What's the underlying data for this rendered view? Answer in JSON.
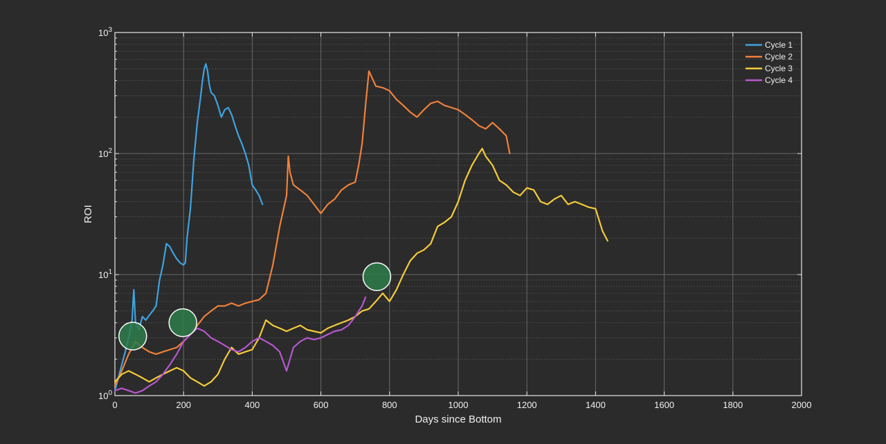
{
  "chart_data": {
    "type": "line",
    "title": "",
    "xlabel": "Days since Bottom",
    "ylabel": "ROI",
    "xlim": [
      0,
      2000
    ],
    "ylim": [
      1,
      1000
    ],
    "yscale": "log",
    "grid": true,
    "legend_position": "top-right",
    "background_color": "#2b2b2b",
    "x_ticks": [
      0,
      200,
      400,
      600,
      800,
      1000,
      1200,
      1400,
      1600,
      1800,
      2000
    ],
    "y_ticks": [
      {
        "base": "10",
        "exp": "0",
        "value": 1
      },
      {
        "base": "10",
        "exp": "1",
        "value": 10
      },
      {
        "base": "10",
        "exp": "2",
        "value": 100
      },
      {
        "base": "10",
        "exp": "3",
        "value": 1000
      }
    ],
    "series": [
      {
        "name": "Cycle 1",
        "color": "#3ea3e0",
        "x": [
          0,
          10,
          20,
          30,
          40,
          50,
          55,
          60,
          70,
          80,
          90,
          100,
          110,
          120,
          130,
          140,
          150,
          160,
          170,
          180,
          190,
          200,
          205,
          210,
          220,
          230,
          240,
          250,
          255,
          260,
          265,
          270,
          275,
          280,
          290,
          300,
          310,
          320,
          330,
          340,
          350,
          360,
          370,
          380,
          390,
          400,
          410,
          420,
          430
        ],
        "y": [
          1.1,
          1.4,
          1.8,
          2.3,
          3.0,
          4.2,
          7.5,
          4.0,
          3.5,
          4.5,
          4.2,
          4.6,
          5.0,
          5.5,
          9.0,
          12.0,
          18.0,
          17.0,
          15.0,
          13.5,
          12.5,
          12.0,
          12.5,
          20.0,
          35.0,
          90.0,
          180.0,
          300.0,
          400.0,
          500.0,
          550.0,
          480.0,
          370.0,
          320.0,
          300.0,
          250.0,
          200.0,
          230.0,
          240.0,
          210.0,
          170.0,
          140.0,
          120.0,
          100.0,
          80.0,
          55.0,
          50.0,
          45.0,
          38.0
        ]
      },
      {
        "name": "Cycle 2",
        "color": "#f0813a",
        "x": [
          0,
          20,
          40,
          60,
          80,
          100,
          120,
          140,
          160,
          180,
          200,
          220,
          240,
          260,
          280,
          300,
          320,
          340,
          360,
          380,
          400,
          420,
          440,
          460,
          480,
          500,
          505,
          510,
          520,
          540,
          560,
          580,
          600,
          620,
          640,
          660,
          680,
          700,
          710,
          720,
          730,
          740,
          760,
          780,
          800,
          820,
          840,
          860,
          880,
          900,
          920,
          940,
          960,
          980,
          1000,
          1020,
          1040,
          1060,
          1080,
          1100,
          1120,
          1140,
          1150
        ],
        "y": [
          1.2,
          1.6,
          2.2,
          2.8,
          2.5,
          2.3,
          2.2,
          2.3,
          2.4,
          2.5,
          2.8,
          3.2,
          3.8,
          4.5,
          5.0,
          5.5,
          5.5,
          5.8,
          5.5,
          5.8,
          6.0,
          6.2,
          7.0,
          12.0,
          25.0,
          45.0,
          95.0,
          70.0,
          55.0,
          50.0,
          45.0,
          38.0,
          32.0,
          38.0,
          42.0,
          50.0,
          55.0,
          58.0,
          80.0,
          120.0,
          250.0,
          480.0,
          360.0,
          350.0,
          330.0,
          280.0,
          250.0,
          220.0,
          200.0,
          230.0,
          260.0,
          270.0,
          250.0,
          240.0,
          230.0,
          210.0,
          190.0,
          170.0,
          160.0,
          180.0,
          160.0,
          140.0,
          100.0
        ]
      },
      {
        "name": "Cycle 3",
        "color": "#f5cc3a",
        "x": [
          0,
          20,
          40,
          60,
          80,
          100,
          120,
          140,
          160,
          180,
          200,
          220,
          240,
          260,
          280,
          300,
          320,
          340,
          360,
          380,
          400,
          420,
          440,
          460,
          480,
          500,
          520,
          540,
          560,
          580,
          600,
          620,
          640,
          660,
          680,
          700,
          720,
          740,
          760,
          780,
          800,
          820,
          840,
          860,
          880,
          900,
          920,
          940,
          960,
          980,
          1000,
          1020,
          1040,
          1060,
          1070,
          1080,
          1100,
          1120,
          1140,
          1160,
          1180,
          1200,
          1220,
          1240,
          1260,
          1280,
          1300,
          1320,
          1340,
          1360,
          1380,
          1400,
          1420,
          1435
        ],
        "y": [
          1.3,
          1.5,
          1.6,
          1.5,
          1.4,
          1.3,
          1.4,
          1.5,
          1.6,
          1.7,
          1.6,
          1.4,
          1.3,
          1.2,
          1.3,
          1.5,
          2.0,
          2.5,
          2.2,
          2.3,
          2.4,
          3.0,
          4.2,
          3.8,
          3.6,
          3.4,
          3.6,
          3.8,
          3.5,
          3.4,
          3.3,
          3.6,
          3.8,
          4.0,
          4.2,
          4.5,
          5.0,
          5.2,
          6.0,
          7.0,
          6.0,
          7.5,
          10.0,
          13.0,
          15.0,
          16.0,
          18.0,
          25.0,
          27.0,
          30.0,
          40.0,
          60.0,
          80.0,
          100.0,
          110.0,
          95.0,
          80.0,
          60.0,
          55.0,
          48.0,
          45.0,
          52.0,
          50.0,
          40.0,
          38.0,
          42.0,
          45.0,
          38.0,
          40.0,
          38.0,
          36.0,
          35.0,
          23.0,
          19.0
        ]
      },
      {
        "name": "Cycle 4",
        "color": "#b658cf",
        "x": [
          0,
          20,
          40,
          60,
          80,
          100,
          120,
          140,
          160,
          180,
          200,
          220,
          240,
          260,
          280,
          300,
          320,
          340,
          360,
          380,
          400,
          420,
          440,
          460,
          480,
          500,
          520,
          540,
          560,
          580,
          600,
          620,
          640,
          660,
          680,
          700,
          720,
          730
        ],
        "y": [
          1.1,
          1.15,
          1.1,
          1.05,
          1.1,
          1.2,
          1.3,
          1.5,
          1.8,
          2.2,
          2.8,
          3.2,
          3.6,
          3.4,
          3.0,
          2.8,
          2.6,
          2.4,
          2.3,
          2.5,
          2.8,
          3.0,
          2.8,
          2.6,
          2.3,
          1.6,
          2.5,
          2.8,
          3.0,
          2.9,
          3.0,
          3.2,
          3.4,
          3.5,
          3.8,
          4.5,
          5.5,
          6.5
        ]
      }
    ],
    "annotations": [
      {
        "type": "circle-marker",
        "x": 52,
        "y": 3.1,
        "color": "#2e7d4a"
      },
      {
        "type": "circle-marker",
        "x": 198,
        "y": 4.0,
        "color": "#2e7d4a"
      },
      {
        "type": "circle-marker",
        "x": 763,
        "y": 9.6,
        "color": "#2e7d4a"
      }
    ]
  }
}
